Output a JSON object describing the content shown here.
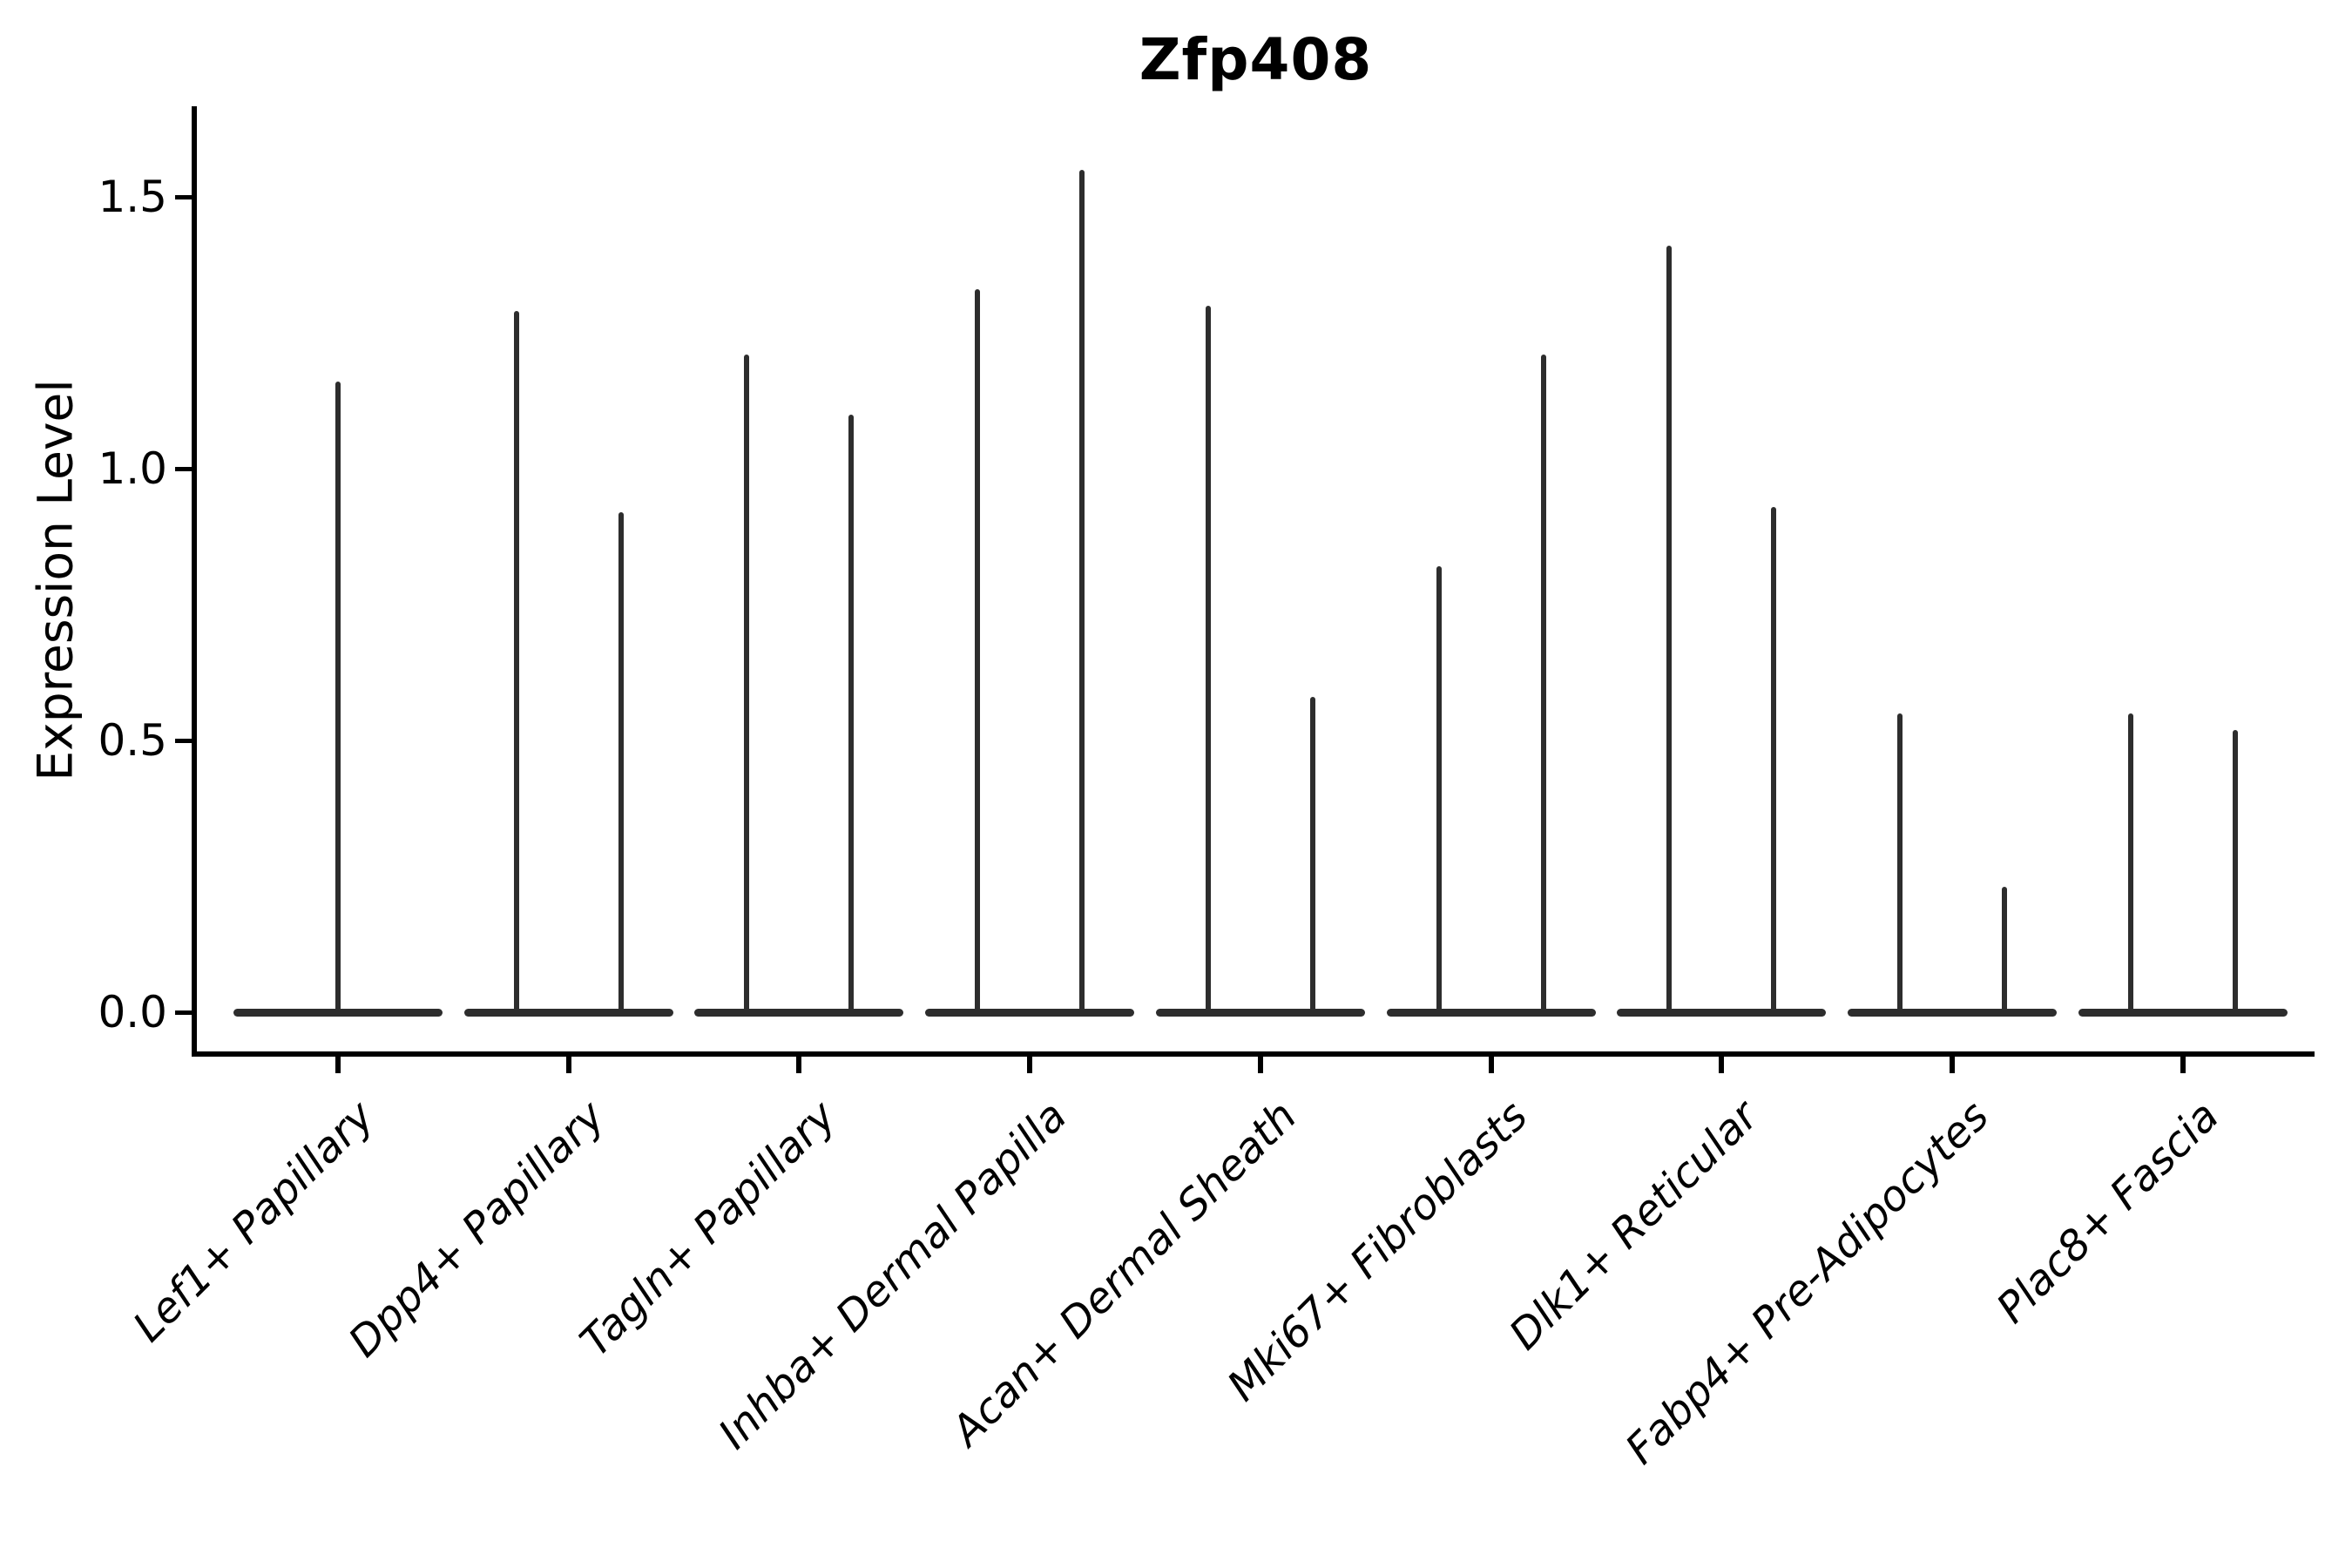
{
  "chart_data": {
    "type": "violin",
    "title": "Zfp408",
    "ylabel": "Expression Level",
    "xlabel": "",
    "ytick_labels": [
      "1.5",
      "1.0",
      "0.5",
      "0.0"
    ],
    "ytick_values": [
      1.5,
      1.0,
      0.5,
      0.0
    ],
    "ylim": [
      -0.08,
      1.67
    ],
    "grid": false,
    "legend_position": "none",
    "background_color": "#ffffff",
    "axis_color": "#000000",
    "violin_color": "#2d2d2d",
    "categories": [
      "Lef1+ Papillary",
      "Dpp4+ Papillary",
      "Tagln+ Papillary",
      "Inhba+ Dermal Papilla",
      "Acan+ Dermal Sheath",
      "Mki67+ Fibroblasts",
      "Dlk1+ Reticular",
      "Fabp4+ Pre-Adipocytes",
      "Plac8+ Fascia"
    ],
    "violins": [
      {
        "category": "Lef1+ Papillary",
        "min": 0.0,
        "maxima": [
          1.16
        ]
      },
      {
        "category": "Dpp4+ Papillary",
        "min": 0.0,
        "maxima": [
          1.29,
          0.92
        ]
      },
      {
        "category": "Tagln+ Papillary",
        "min": 0.0,
        "maxima": [
          1.21,
          1.1
        ]
      },
      {
        "category": "Inhba+ Dermal Papilla",
        "min": 0.0,
        "maxima": [
          1.33,
          1.55
        ]
      },
      {
        "category": "Acan+ Dermal Sheath",
        "min": 0.0,
        "maxima": [
          1.3,
          0.58
        ]
      },
      {
        "category": "Mki67+ Fibroblasts",
        "min": 0.0,
        "maxima": [
          0.82,
          1.21
        ]
      },
      {
        "category": "Dlk1+ Reticular",
        "min": 0.0,
        "maxima": [
          1.41,
          0.93
        ]
      },
      {
        "category": "Fabp4+ Pre-Adipocytes",
        "min": 0.0,
        "maxima": [
          0.55,
          0.23
        ]
      },
      {
        "category": "Plac8+ Fascia",
        "min": 0.0,
        "maxima": [
          0.55,
          0.52
        ]
      }
    ]
  }
}
